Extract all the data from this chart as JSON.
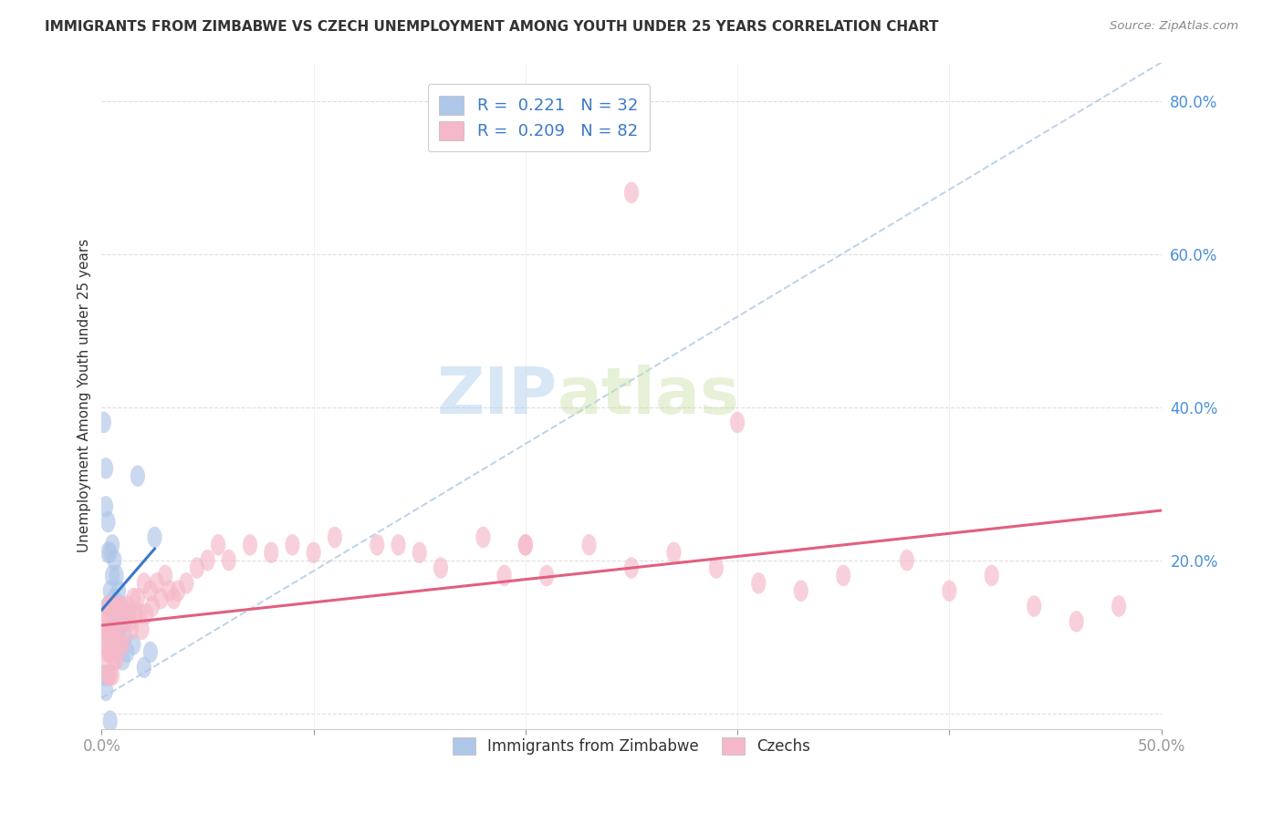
{
  "title": "IMMIGRANTS FROM ZIMBABWE VS CZECH UNEMPLOYMENT AMONG YOUTH UNDER 25 YEARS CORRELATION CHART",
  "source": "Source: ZipAtlas.com",
  "ylabel": "Unemployment Among Youth under 25 years",
  "xlim": [
    0,
    0.5
  ],
  "ylim": [
    -0.02,
    0.85
  ],
  "x_ticks": [
    0.0,
    0.1,
    0.2,
    0.3,
    0.4,
    0.5
  ],
  "x_tick_labels": [
    "0.0%",
    "",
    "",
    "",
    "",
    "50.0%"
  ],
  "y_ticks_right": [
    0.0,
    0.2,
    0.4,
    0.6,
    0.8
  ],
  "y_tick_labels_right": [
    "",
    "20.0%",
    "40.0%",
    "60.0%",
    "80.0%"
  ],
  "blue_R": "0.221",
  "blue_N": "32",
  "pink_R": "0.209",
  "pink_N": "82",
  "blue_color": "#aec6e8",
  "pink_color": "#f5b8c8",
  "blue_line_color": "#3a78c9",
  "pink_line_color": "#e06080",
  "dashed_line_color": "#b8d0e8",
  "watermark_zip": "ZIP",
  "watermark_atlas": "atlas",
  "blue_scatter_x": [
    0.001,
    0.002,
    0.002,
    0.003,
    0.003,
    0.003,
    0.004,
    0.004,
    0.004,
    0.005,
    0.005,
    0.006,
    0.006,
    0.007,
    0.007,
    0.008,
    0.008,
    0.009,
    0.009,
    0.01,
    0.01,
    0.011,
    0.012,
    0.013,
    0.015,
    0.017,
    0.02,
    0.023,
    0.025,
    0.001,
    0.002,
    0.004
  ],
  "blue_scatter_y": [
    0.38,
    0.32,
    0.27,
    0.25,
    0.21,
    0.14,
    0.21,
    0.16,
    0.1,
    0.22,
    0.18,
    0.2,
    0.15,
    0.18,
    0.13,
    0.16,
    0.11,
    0.14,
    0.09,
    0.12,
    0.07,
    0.1,
    0.08,
    0.13,
    0.09,
    0.31,
    0.06,
    0.08,
    0.23,
    0.05,
    0.03,
    -0.01
  ],
  "pink_scatter_x": [
    0.001,
    0.001,
    0.002,
    0.002,
    0.002,
    0.003,
    0.003,
    0.003,
    0.003,
    0.004,
    0.004,
    0.004,
    0.004,
    0.005,
    0.005,
    0.005,
    0.005,
    0.006,
    0.006,
    0.006,
    0.007,
    0.007,
    0.007,
    0.008,
    0.008,
    0.009,
    0.009,
    0.01,
    0.01,
    0.011,
    0.012,
    0.013,
    0.014,
    0.015,
    0.016,
    0.017,
    0.018,
    0.019,
    0.02,
    0.021,
    0.023,
    0.024,
    0.026,
    0.028,
    0.03,
    0.032,
    0.034,
    0.036,
    0.04,
    0.045,
    0.05,
    0.055,
    0.06,
    0.07,
    0.08,
    0.09,
    0.1,
    0.11,
    0.13,
    0.14,
    0.15,
    0.16,
    0.18,
    0.19,
    0.2,
    0.21,
    0.23,
    0.25,
    0.27,
    0.29,
    0.31,
    0.33,
    0.35,
    0.38,
    0.4,
    0.42,
    0.44,
    0.46,
    0.48,
    0.2,
    0.25,
    0.3
  ],
  "pink_scatter_y": [
    0.13,
    0.09,
    0.13,
    0.1,
    0.07,
    0.14,
    0.11,
    0.08,
    0.05,
    0.14,
    0.11,
    0.08,
    0.05,
    0.14,
    0.11,
    0.08,
    0.05,
    0.14,
    0.11,
    0.07,
    0.14,
    0.11,
    0.07,
    0.13,
    0.09,
    0.14,
    0.09,
    0.13,
    0.09,
    0.12,
    0.14,
    0.12,
    0.11,
    0.15,
    0.13,
    0.15,
    0.13,
    0.11,
    0.17,
    0.13,
    0.16,
    0.14,
    0.17,
    0.15,
    0.18,
    0.16,
    0.15,
    0.16,
    0.17,
    0.19,
    0.2,
    0.22,
    0.2,
    0.22,
    0.21,
    0.22,
    0.21,
    0.23,
    0.22,
    0.22,
    0.21,
    0.19,
    0.23,
    0.18,
    0.22,
    0.18,
    0.22,
    0.19,
    0.21,
    0.19,
    0.17,
    0.16,
    0.18,
    0.2,
    0.16,
    0.18,
    0.14,
    0.12,
    0.14,
    0.22,
    0.68,
    0.38
  ],
  "blue_trend_x": [
    0.0,
    0.025
  ],
  "blue_trend_y": [
    0.135,
    0.215
  ],
  "pink_trend_x": [
    0.0,
    0.5
  ],
  "pink_trend_y": [
    0.115,
    0.265
  ],
  "dashed_trend_x": [
    0.0,
    0.5
  ],
  "dashed_trend_y": [
    0.02,
    0.85
  ]
}
